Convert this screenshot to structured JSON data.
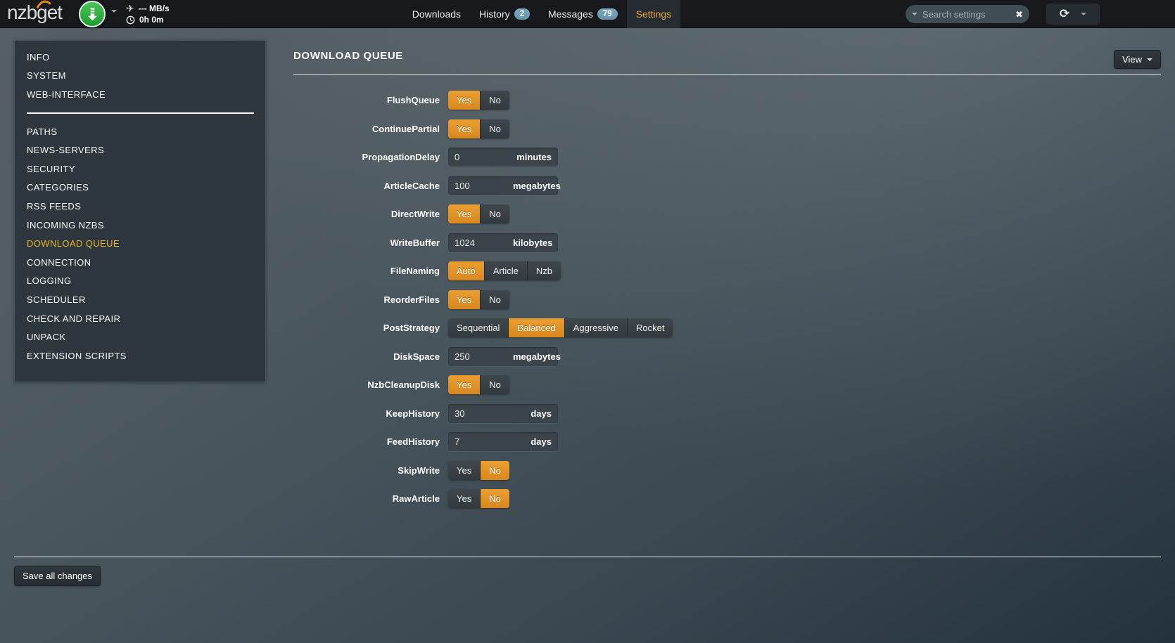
{
  "topbar": {
    "logo_text": "nzbget",
    "logo_arc_icon": "signal-arc-icon",
    "download_button_icon": "download-arrow-icon",
    "airplane_icon": "airplane-icon",
    "clock_icon": "clock-icon",
    "speed_label": "--- MB/s",
    "eta_label": "0h 0m",
    "nav_items": [
      {
        "label": "Downloads",
        "active": false
      },
      {
        "label": "History",
        "badge": "2",
        "active": false
      },
      {
        "label": "Messages",
        "badge": "79",
        "active": false
      },
      {
        "label": "Settings",
        "active": true
      }
    ],
    "search": {
      "placeholder": "Search settings",
      "clear_icon": "clear-x-icon",
      "clear_glyph": "✖",
      "caret_icon": "caret-down-icon"
    },
    "refresh_icon": "refresh-icon",
    "refresh_glyph": "⟳",
    "menu_caret_icon": "caret-down-icon",
    "airplane_glyph": "✈"
  },
  "sidebar": {
    "top_items": [
      {
        "label": "INFO",
        "active": false
      },
      {
        "label": "SYSTEM",
        "active": false
      },
      {
        "label": "WEB-INTERFACE",
        "active": false
      }
    ],
    "bottom_items": [
      {
        "label": "PATHS",
        "active": false
      },
      {
        "label": "NEWS-SERVERS",
        "active": false
      },
      {
        "label": "SECURITY",
        "active": false
      },
      {
        "label": "CATEGORIES",
        "active": false
      },
      {
        "label": "RSS FEEDS",
        "active": false
      },
      {
        "label": "INCOMING NZBS",
        "active": false
      },
      {
        "label": "DOWNLOAD QUEUE",
        "active": true
      },
      {
        "label": "CONNECTION",
        "active": false
      },
      {
        "label": "LOGGING",
        "active": false
      },
      {
        "label": "SCHEDULER",
        "active": false
      },
      {
        "label": "CHECK AND REPAIR",
        "active": false
      },
      {
        "label": "UNPACK",
        "active": false
      },
      {
        "label": "EXTENSION SCRIPTS",
        "active": false
      }
    ]
  },
  "main": {
    "title": "DOWNLOAD QUEUE",
    "view_button_label": "View",
    "rows": [
      {
        "label": "FlushQueue",
        "type": "toggle",
        "options": [
          {
            "label": "Yes",
            "active": true
          },
          {
            "label": "No",
            "active": false
          }
        ]
      },
      {
        "label": "ContinuePartial",
        "type": "toggle",
        "options": [
          {
            "label": "Yes",
            "active": true
          },
          {
            "label": "No",
            "active": false
          }
        ]
      },
      {
        "label": "PropagationDelay",
        "type": "input",
        "value": "0",
        "unit": "minutes"
      },
      {
        "label": "ArticleCache",
        "type": "input",
        "value": "100",
        "unit": "megabytes"
      },
      {
        "label": "DirectWrite",
        "type": "toggle",
        "options": [
          {
            "label": "Yes",
            "active": true
          },
          {
            "label": "No",
            "active": false
          }
        ]
      },
      {
        "label": "WriteBuffer",
        "type": "input",
        "value": "1024",
        "unit": "kilobytes"
      },
      {
        "label": "FileNaming",
        "type": "toggle",
        "options": [
          {
            "label": "Auto",
            "active": true
          },
          {
            "label": "Article",
            "active": false
          },
          {
            "label": "Nzb",
            "active": false
          }
        ]
      },
      {
        "label": "ReorderFiles",
        "type": "toggle",
        "options": [
          {
            "label": "Yes",
            "active": true
          },
          {
            "label": "No",
            "active": false
          }
        ]
      },
      {
        "label": "PostStrategy",
        "type": "toggle",
        "options": [
          {
            "label": "Sequential",
            "active": false
          },
          {
            "label": "Balanced",
            "active": true
          },
          {
            "label": "Aggressive",
            "active": false
          },
          {
            "label": "Rocket",
            "active": false
          }
        ]
      },
      {
        "label": "DiskSpace",
        "type": "input",
        "value": "250",
        "unit": "megabytes"
      },
      {
        "label": "NzbCleanupDisk",
        "type": "toggle",
        "options": [
          {
            "label": "Yes",
            "active": true
          },
          {
            "label": "No",
            "active": false
          }
        ]
      },
      {
        "label": "KeepHistory",
        "type": "input",
        "value": "30",
        "unit": "days"
      },
      {
        "label": "FeedHistory",
        "type": "input",
        "value": "7",
        "unit": "days"
      },
      {
        "label": "SkipWrite",
        "type": "toggle",
        "options": [
          {
            "label": "Yes",
            "active": false
          },
          {
            "label": "No",
            "active": true
          }
        ]
      },
      {
        "label": "RawArticle",
        "type": "toggle",
        "options": [
          {
            "label": "Yes",
            "active": false
          },
          {
            "label": "No",
            "active": true
          }
        ]
      }
    ],
    "save_button_label": "Save all changes"
  },
  "colors": {
    "accent_orange": "#e2922b",
    "sidebar_active_gold": "#eab42c",
    "badge_blue": "#71a0b8",
    "download_green": "#2fb344",
    "logo_arc_orange": "#e8860d",
    "topbar_bg": "#17191d"
  }
}
